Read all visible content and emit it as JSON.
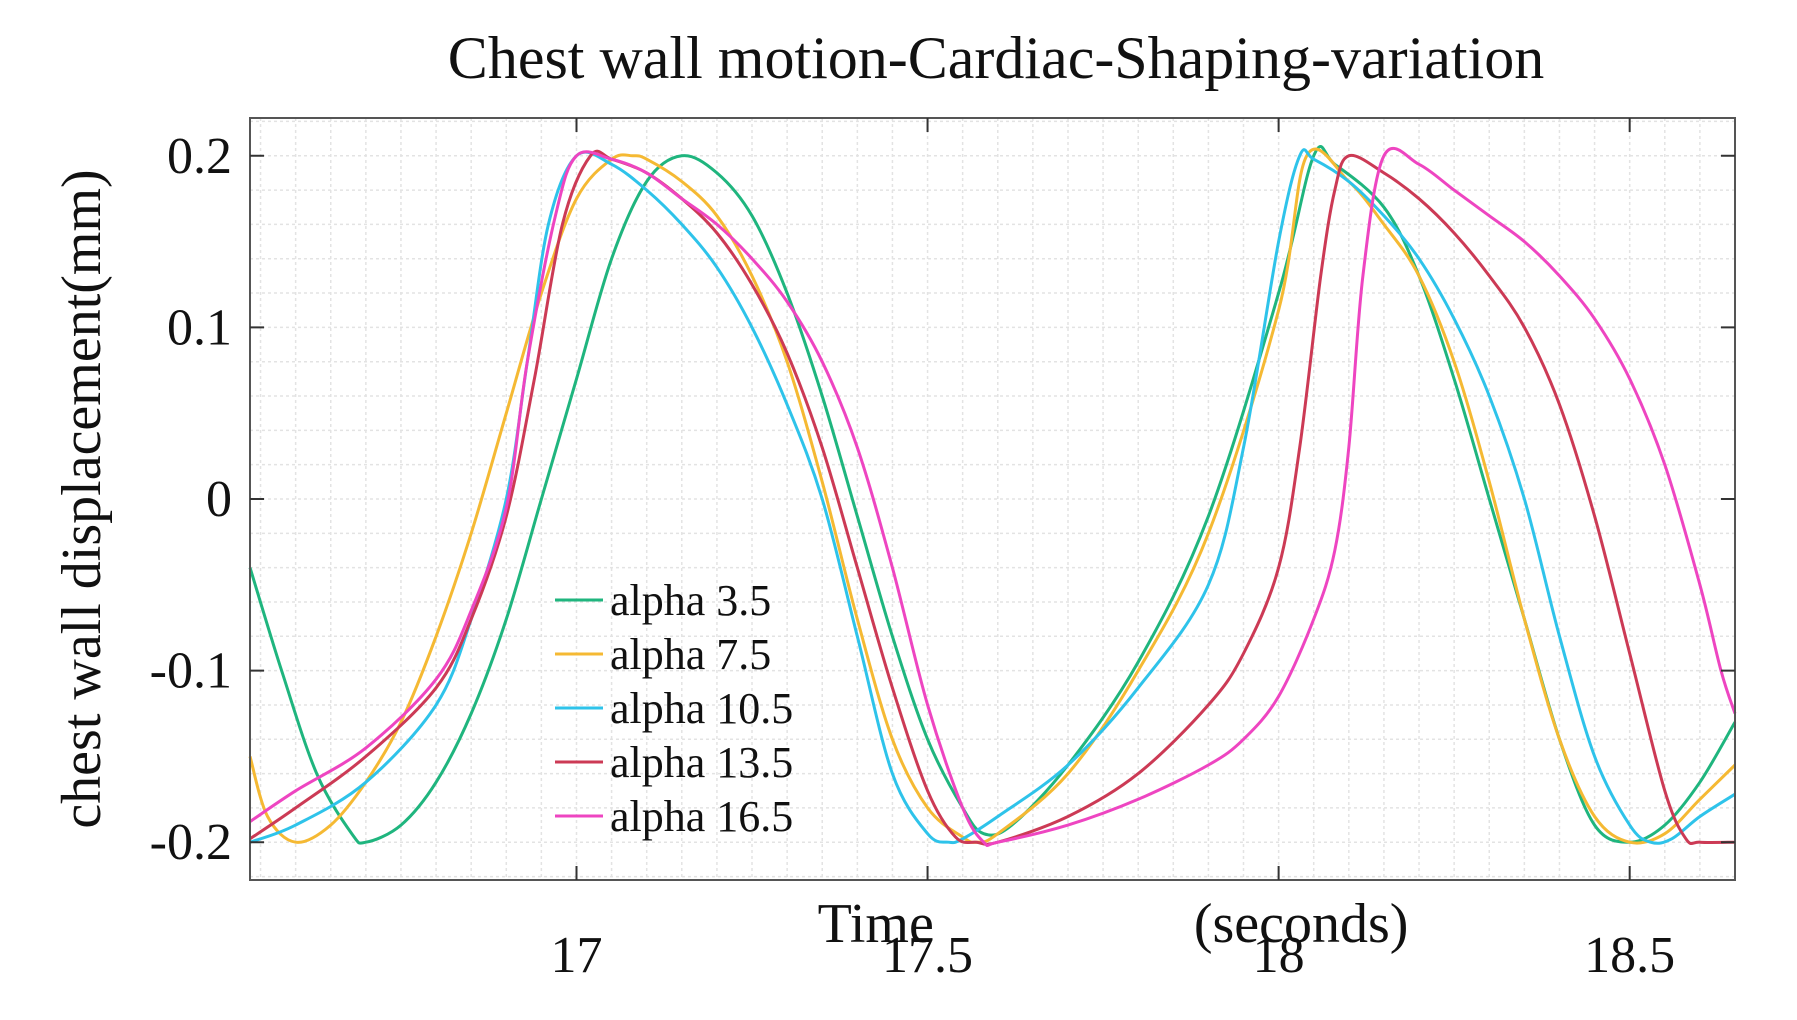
{
  "chart_data": {
    "type": "line",
    "title": "Chest wall motion-Cardiac-Shaping-variation",
    "xlabel_main": "Time",
    "xlabel_unit": "(seconds)",
    "ylabel": "chest wall displacement(mm)",
    "xlim": [
      16.535,
      18.65
    ],
    "ylim": [
      -0.222,
      0.222
    ],
    "xticks": [
      {
        "value": 17,
        "label": "17"
      },
      {
        "value": 17.5,
        "label": "17.5"
      },
      {
        "value": 18,
        "label": "18"
      },
      {
        "value": 18.5,
        "label": "18.5"
      }
    ],
    "yticks": [
      {
        "value": 0.2,
        "label": "0.2"
      },
      {
        "value": 0.1,
        "label": "0.1"
      },
      {
        "value": 0,
        "label": "0"
      },
      {
        "value": -0.1,
        "label": "-0.1"
      },
      {
        "value": -0.2,
        "label": "-0.2"
      }
    ],
    "grid": true,
    "legend_position": "lower-center",
    "series": [
      {
        "name": "alpha 3.5",
        "color": "#1fb57e",
        "x": [
          16.535,
          16.58,
          16.63,
          16.68,
          16.7,
          16.75,
          16.8,
          16.85,
          16.9,
          16.95,
          17.0,
          17.05,
          17.1,
          17.15,
          17.2,
          17.25,
          17.3,
          17.35,
          17.4,
          17.45,
          17.5,
          17.55,
          17.58,
          17.62,
          17.7,
          17.8,
          17.9,
          18.0,
          18.05,
          18.08,
          18.15,
          18.2,
          18.25,
          18.3,
          18.35,
          18.4,
          18.45,
          18.5,
          18.55,
          18.6,
          18.65
        ],
        "y": [
          -0.04,
          -0.1,
          -0.16,
          -0.195,
          -0.2,
          -0.19,
          -0.165,
          -0.125,
          -0.07,
          0.0,
          0.07,
          0.14,
          0.185,
          0.2,
          0.19,
          0.165,
          0.12,
          0.06,
          -0.01,
          -0.08,
          -0.14,
          -0.18,
          -0.195,
          -0.19,
          -0.155,
          -0.095,
          -0.01,
          0.12,
          0.2,
          0.195,
          0.17,
          0.13,
          0.07,
          0.0,
          -0.07,
          -0.14,
          -0.19,
          -0.2,
          -0.19,
          -0.165,
          -0.13
        ]
      },
      {
        "name": "alpha 7.5",
        "color": "#f5b933",
        "x": [
          16.535,
          16.56,
          16.6,
          16.65,
          16.7,
          16.75,
          16.8,
          16.85,
          16.9,
          16.95,
          17.0,
          17.05,
          17.08,
          17.1,
          17.15,
          17.2,
          17.25,
          17.3,
          17.35,
          17.4,
          17.45,
          17.5,
          17.55,
          17.57,
          17.6,
          17.7,
          17.8,
          17.9,
          18.0,
          18.04,
          18.1,
          18.15,
          18.2,
          18.25,
          18.3,
          18.35,
          18.4,
          18.45,
          18.5,
          18.55,
          18.6,
          18.65
        ],
        "y": [
          -0.15,
          -0.185,
          -0.2,
          -0.19,
          -0.165,
          -0.13,
          -0.08,
          -0.02,
          0.05,
          0.12,
          0.175,
          0.198,
          0.2,
          0.198,
          0.185,
          0.165,
          0.13,
          0.08,
          0.01,
          -0.07,
          -0.14,
          -0.18,
          -0.197,
          -0.2,
          -0.195,
          -0.16,
          -0.1,
          -0.02,
          0.11,
          0.2,
          0.185,
          0.16,
          0.13,
          0.08,
          0.01,
          -0.07,
          -0.14,
          -0.185,
          -0.2,
          -0.195,
          -0.175,
          -0.155
        ]
      },
      {
        "name": "alpha 10.5",
        "color": "#2ec3ea",
        "x": [
          16.535,
          16.6,
          16.7,
          16.8,
          16.85,
          16.9,
          16.93,
          16.96,
          17.0,
          17.05,
          17.1,
          17.15,
          17.2,
          17.25,
          17.3,
          17.35,
          17.4,
          17.45,
          17.5,
          17.53,
          17.55,
          17.6,
          17.7,
          17.8,
          17.9,
          17.95,
          18.0,
          18.03,
          18.05,
          18.1,
          18.15,
          18.2,
          18.25,
          18.3,
          18.35,
          18.4,
          18.45,
          18.5,
          18.53,
          18.56,
          18.6,
          18.65
        ],
        "y": [
          -0.2,
          -0.19,
          -0.165,
          -0.12,
          -0.07,
          0.0,
          0.08,
          0.16,
          0.2,
          0.195,
          0.18,
          0.16,
          0.135,
          0.1,
          0.055,
          0.0,
          -0.08,
          -0.16,
          -0.195,
          -0.2,
          -0.198,
          -0.185,
          -0.155,
          -0.11,
          -0.05,
          0.03,
          0.15,
          0.2,
          0.198,
          0.185,
          0.165,
          0.14,
          0.105,
          0.06,
          0.0,
          -0.08,
          -0.15,
          -0.19,
          -0.2,
          -0.198,
          -0.185,
          -0.172
        ]
      },
      {
        "name": "alpha 13.5",
        "color": "#cc3a55",
        "x": [
          16.535,
          16.6,
          16.7,
          16.8,
          16.85,
          16.9,
          16.94,
          16.98,
          17.02,
          17.05,
          17.1,
          17.15,
          17.2,
          17.25,
          17.3,
          17.35,
          17.4,
          17.45,
          17.5,
          17.54,
          17.57,
          17.6,
          17.7,
          17.8,
          17.9,
          17.95,
          18.0,
          18.03,
          18.06,
          18.08,
          18.1,
          18.15,
          18.2,
          18.25,
          18.3,
          18.35,
          18.4,
          18.45,
          18.5,
          18.55,
          18.58,
          18.6,
          18.65
        ],
        "y": [
          -0.198,
          -0.18,
          -0.15,
          -0.11,
          -0.07,
          -0.01,
          0.07,
          0.16,
          0.2,
          0.198,
          0.19,
          0.175,
          0.155,
          0.125,
          0.085,
          0.03,
          -0.04,
          -0.11,
          -0.17,
          -0.197,
          -0.2,
          -0.2,
          -0.185,
          -0.16,
          -0.12,
          -0.09,
          -0.04,
          0.03,
          0.13,
          0.18,
          0.2,
          0.19,
          0.175,
          0.155,
          0.13,
          0.1,
          0.055,
          -0.01,
          -0.09,
          -0.17,
          -0.198,
          -0.2,
          -0.2
        ]
      },
      {
        "name": "alpha 16.5",
        "color": "#ee45c1",
        "x": [
          16.535,
          16.6,
          16.7,
          16.8,
          16.85,
          16.9,
          16.93,
          16.97,
          17.0,
          17.05,
          17.1,
          17.15,
          17.2,
          17.25,
          17.3,
          17.35,
          17.4,
          17.45,
          17.5,
          17.55,
          17.58,
          17.6,
          17.7,
          17.8,
          17.9,
          17.95,
          18.0,
          18.05,
          18.08,
          18.1,
          18.12,
          18.15,
          18.2,
          18.25,
          18.3,
          18.35,
          18.4,
          18.45,
          18.5,
          18.55,
          18.6,
          18.63,
          18.65
        ],
        "y": [
          -0.188,
          -0.17,
          -0.145,
          -0.105,
          -0.065,
          -0.005,
          0.08,
          0.165,
          0.2,
          0.198,
          0.19,
          0.175,
          0.16,
          0.14,
          0.115,
          0.08,
          0.03,
          -0.04,
          -0.12,
          -0.18,
          -0.2,
          -0.2,
          -0.19,
          -0.175,
          -0.155,
          -0.14,
          -0.115,
          -0.07,
          -0.03,
          0.03,
          0.13,
          0.2,
          0.195,
          0.18,
          0.165,
          0.15,
          0.13,
          0.105,
          0.07,
          0.02,
          -0.05,
          -0.1,
          -0.125
        ]
      }
    ]
  }
}
